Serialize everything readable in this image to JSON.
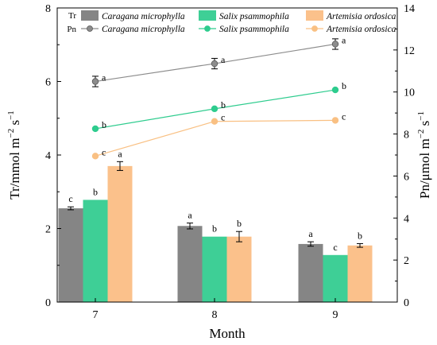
{
  "chart_data": {
    "type": "bar",
    "categories": [
      "7",
      "8",
      "9"
    ],
    "xlabel": "Month",
    "ylabel_left": "Tr/mmol m−2 s−1",
    "ylabel_right": "Pn/μmol m−2 s−1",
    "ylim_left": [
      0,
      8
    ],
    "ylim_right": [
      0,
      14
    ],
    "yticks_left": [
      "0",
      "2",
      "4",
      "6",
      "8"
    ],
    "yticks_right": [
      "0",
      "2",
      "4",
      "6",
      "8",
      "10",
      "12",
      "14"
    ],
    "grid": false,
    "legend": {
      "placement": "top",
      "tr_prefix": "Tr",
      "pn_prefix": "Pn",
      "species": [
        "Caragana microphylla",
        "Salix psammophila",
        "Artemisia ordosica"
      ]
    },
    "colors": {
      "caragana_bar": "#858585",
      "salix_bar": "#3ecf96",
      "artemisia_bar": "#fbc18b",
      "caragana_line": "#8c8c8c",
      "salix_line": "#2ecc8e",
      "artemisia_line": "#f9c083"
    },
    "tr_series": [
      {
        "name": "Caragana microphylla",
        "values": [
          2.55,
          2.07,
          1.58
        ],
        "errors": [
          0.04,
          0.08,
          0.06
        ],
        "letters": [
          "c",
          "a",
          "a"
        ]
      },
      {
        "name": "Salix psammophila",
        "values": [
          2.78,
          1.78,
          1.28
        ],
        "errors": [
          0,
          0,
          0
        ],
        "letters": [
          "b",
          "b",
          "c"
        ]
      },
      {
        "name": "Artemisia ordosica",
        "values": [
          3.7,
          1.78,
          1.54
        ],
        "errors": [
          0.12,
          0.14,
          0.05
        ],
        "letters": [
          "a",
          "b",
          "b"
        ]
      }
    ],
    "pn_series": [
      {
        "name": "Caragana microphylla",
        "values": [
          10.5,
          11.35,
          12.28
        ],
        "errors": [
          0.25,
          0.25,
          0.25
        ],
        "letters": [
          "a",
          "a",
          "a"
        ]
      },
      {
        "name": "Salix psammophila",
        "values": [
          8.25,
          9.2,
          10.1
        ],
        "errors": [
          0,
          0,
          0
        ],
        "letters": [
          "b",
          "b",
          "b"
        ]
      },
      {
        "name": "Artemisia ordosica",
        "values": [
          6.95,
          8.6,
          8.65
        ],
        "errors": [
          0,
          0,
          0
        ],
        "letters": [
          "c",
          "c",
          "c"
        ]
      }
    ]
  }
}
